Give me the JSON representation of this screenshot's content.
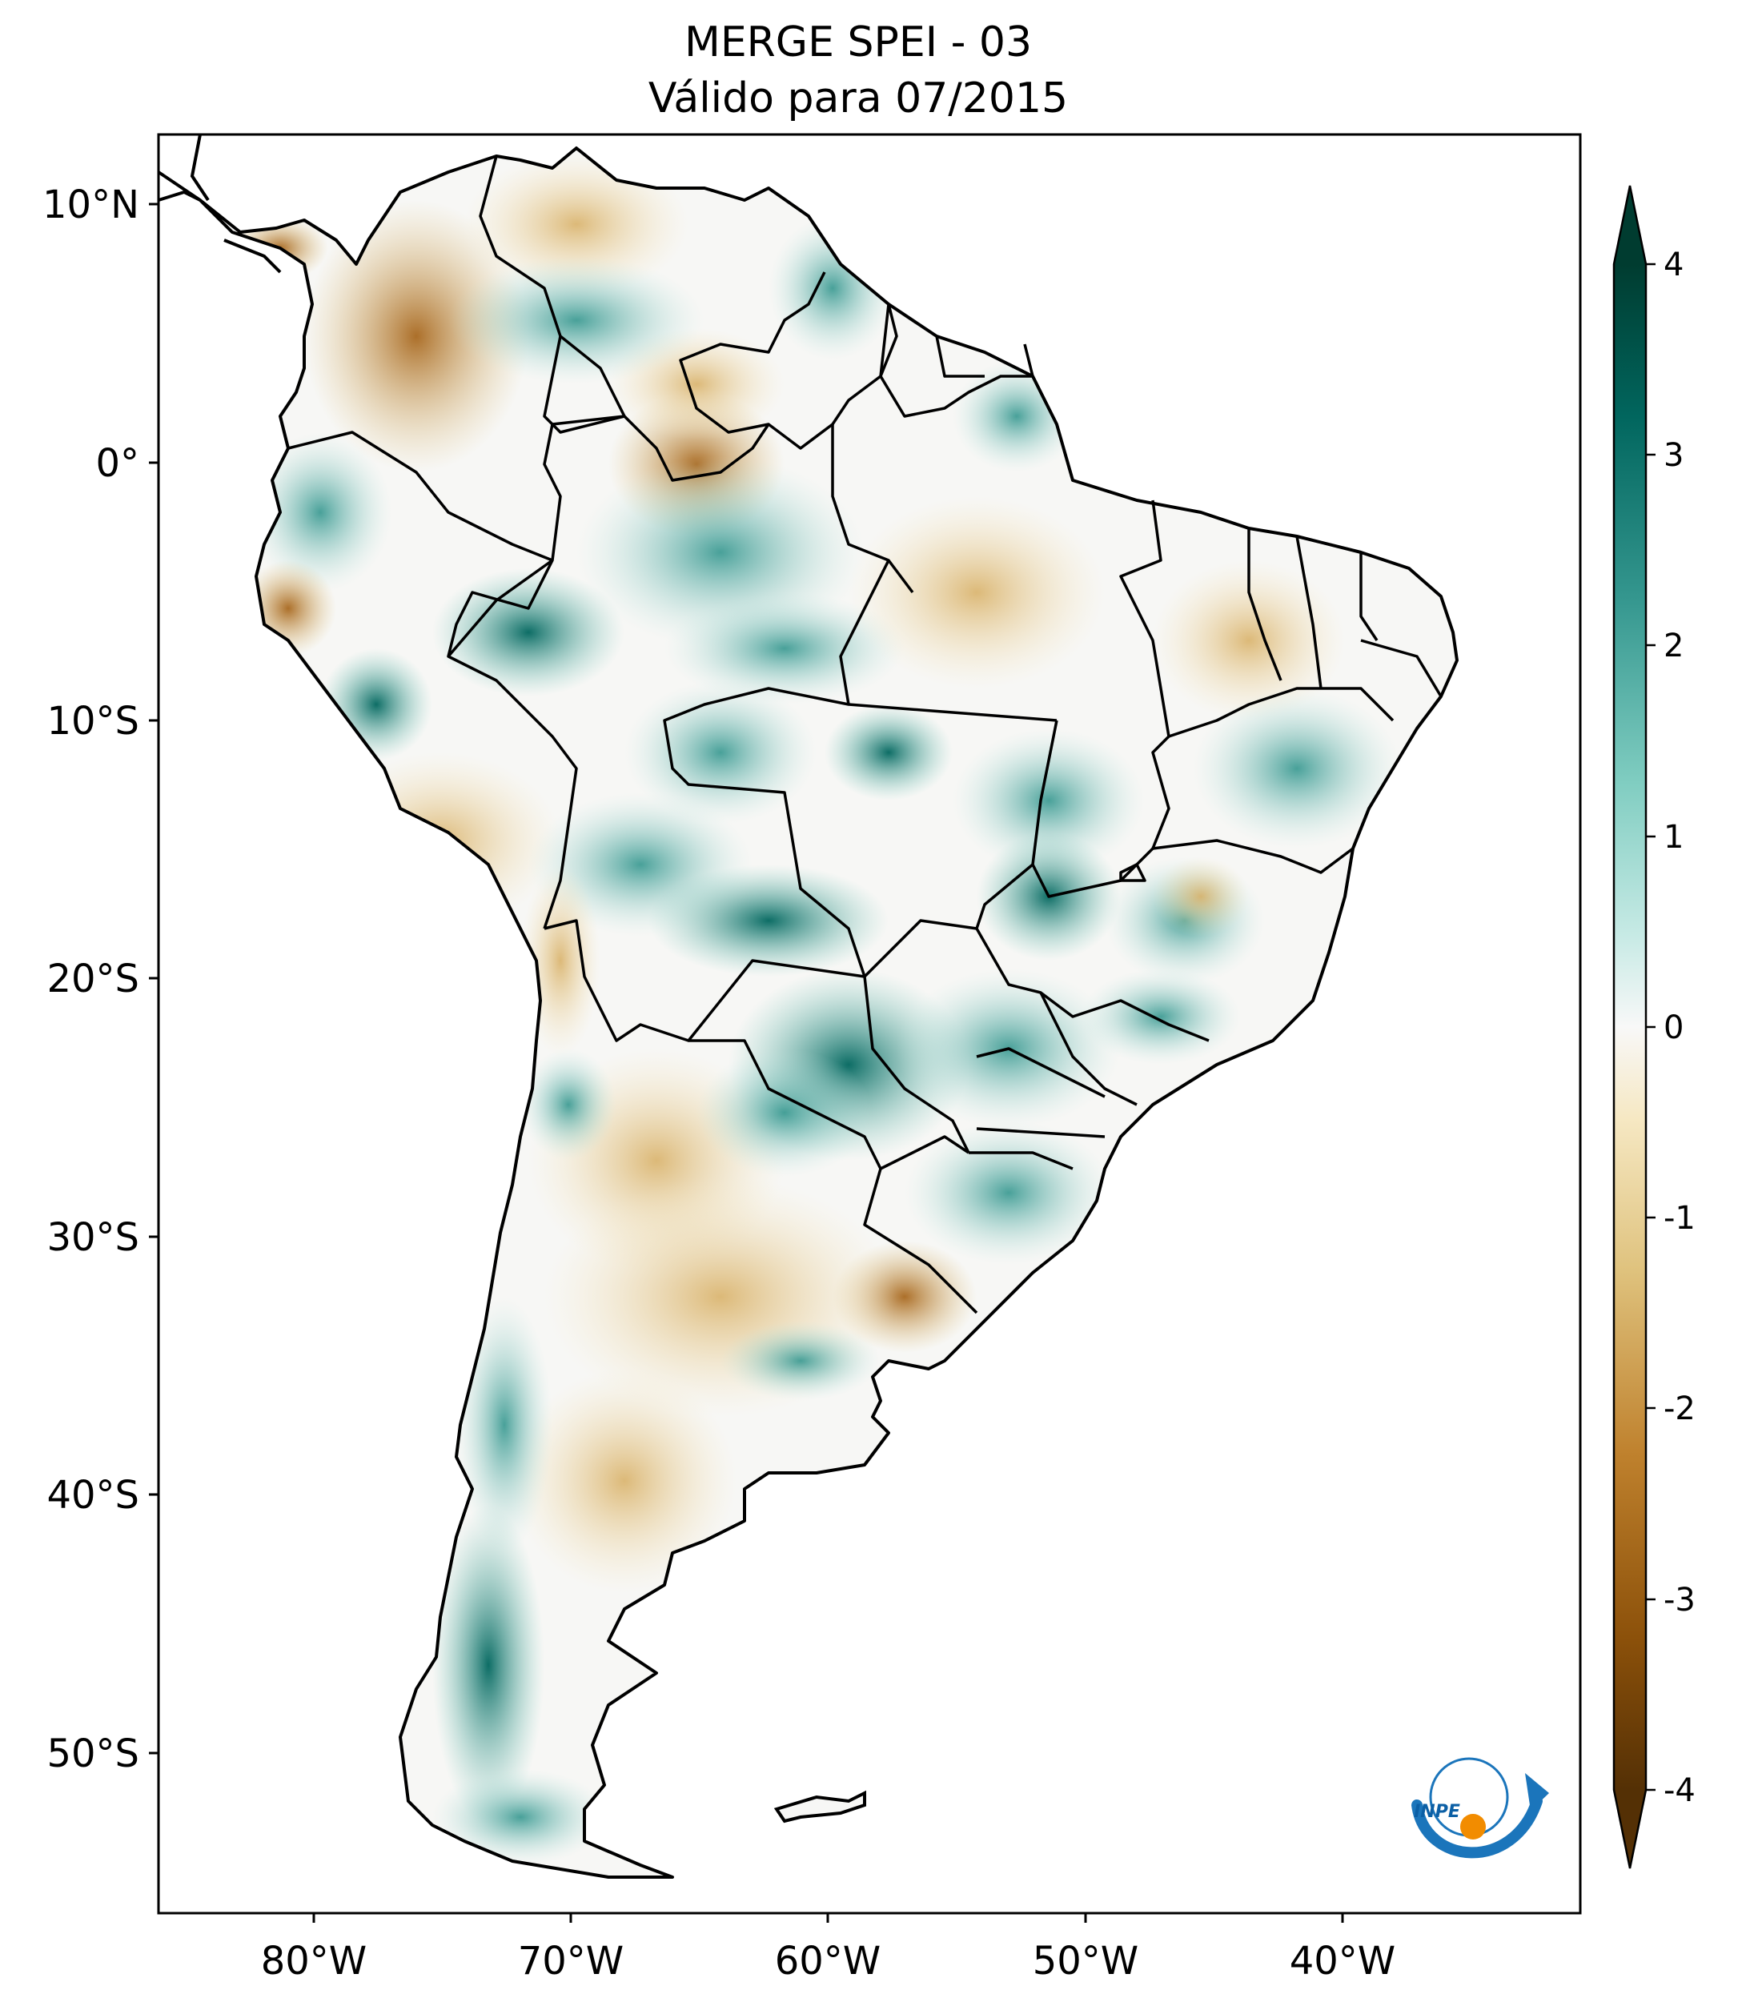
{
  "title": {
    "line1": "MERGE   SPEI - 03",
    "line2": "Válido para 07/2015"
  },
  "axes": {
    "lon_ticks": [
      "80°W",
      "70°W",
      "60°W",
      "50°W",
      "40°W"
    ],
    "lat_ticks": [
      "10°N",
      "0°",
      "10°S",
      "20°S",
      "30°S",
      "40°S",
      "50°S"
    ]
  },
  "colorbar": {
    "ticks": [
      "4",
      "3",
      "2",
      "1",
      "0",
      "-1",
      "-2",
      "-3",
      "-4"
    ],
    "min": -4,
    "max": 4,
    "extend": "both",
    "colors": [
      "#543005",
      "#8c510a",
      "#bf812d",
      "#dfc27d",
      "#f6e8c3",
      "#f5f5f5",
      "#c7eae5",
      "#80cdc1",
      "#35978f",
      "#01665e",
      "#003c30"
    ]
  },
  "logo": {
    "text": "INPE"
  }
}
